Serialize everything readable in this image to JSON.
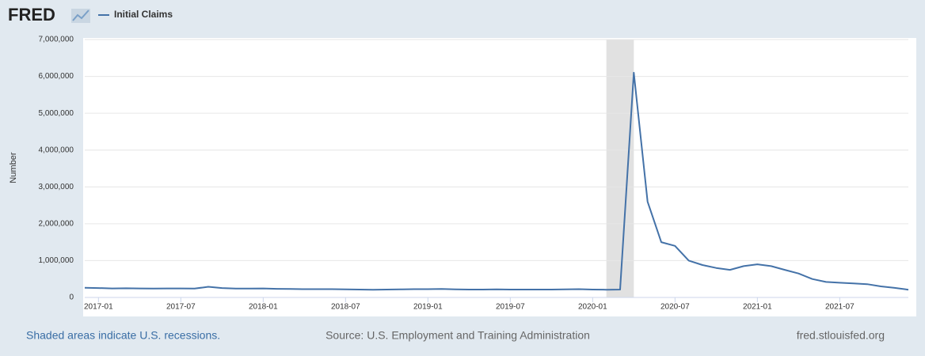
{
  "chart_data": {
    "type": "line",
    "logo": "FRED",
    "y_label": "Number",
    "note": "Shaded areas indicate U.S. recessions.",
    "source": "Source: U.S. Employment and Training Administration",
    "site": "fred.stlouisfed.org",
    "recessions": [
      [
        "2020-02",
        "2020-04"
      ]
    ],
    "x": [
      "2016-12",
      "2017-01",
      "2017-02",
      "2017-03",
      "2017-04",
      "2017-05",
      "2017-06",
      "2017-07",
      "2017-08",
      "2017-09",
      "2017-10",
      "2017-11",
      "2017-12",
      "2018-01",
      "2018-02",
      "2018-03",
      "2018-04",
      "2018-05",
      "2018-06",
      "2018-07",
      "2018-08",
      "2018-09",
      "2018-10",
      "2018-11",
      "2018-12",
      "2019-01",
      "2019-02",
      "2019-03",
      "2019-04",
      "2019-05",
      "2019-06",
      "2019-07",
      "2019-08",
      "2019-09",
      "2019-10",
      "2019-11",
      "2019-12",
      "2020-01",
      "2020-02",
      "2020-03",
      "2020-04",
      "2020-05",
      "2020-06",
      "2020-07",
      "2020-08",
      "2020-09",
      "2020-10",
      "2020-11",
      "2020-12",
      "2021-01",
      "2021-02",
      "2021-03",
      "2021-04",
      "2021-05",
      "2021-06",
      "2021-07",
      "2021-08",
      "2021-09",
      "2021-10",
      "2021-11",
      "2021-12"
    ],
    "series": [
      {
        "name": "Initial Claims",
        "color": "#4472a8",
        "values": [
          265000,
          255000,
          245000,
          250000,
          245000,
          240000,
          245000,
          245000,
          240000,
          290000,
          255000,
          240000,
          240000,
          245000,
          235000,
          230000,
          225000,
          225000,
          225000,
          220000,
          215000,
          210000,
          215000,
          220000,
          225000,
          225000,
          230000,
          220000,
          215000,
          215000,
          220000,
          215000,
          215000,
          215000,
          215000,
          220000,
          225000,
          215000,
          210000,
          215000,
          6100000,
          2600000,
          1500000,
          1400000,
          1000000,
          880000,
          800000,
          750000,
          850000,
          900000,
          850000,
          750000,
          650000,
          500000,
          420000,
          400000,
          380000,
          360000,
          300000,
          260000,
          210000
        ]
      }
    ],
    "xlim": [
      "2016-12",
      "2021-12"
    ],
    "xticks": [
      "2017-01",
      "2017-07",
      "2018-01",
      "2018-07",
      "2019-01",
      "2019-07",
      "2020-01",
      "2020-07",
      "2021-01",
      "2021-07"
    ],
    "ylim": [
      0,
      7000000
    ],
    "yticks": [
      0,
      {
        "value": 1000000,
        "label": "1,000,000"
      },
      {
        "value": 2000000,
        "label": "2,000,000"
      },
      {
        "value": 3000000,
        "label": "3,000,000"
      },
      {
        "value": 4000000,
        "label": "4,000,000"
      },
      {
        "value": 5000000,
        "label": "5,000,000"
      },
      {
        "value": 6000000,
        "label": "6,000,000"
      },
      {
        "value": 7000000,
        "label": "7,000,000"
      }
    ],
    "grid": true
  }
}
